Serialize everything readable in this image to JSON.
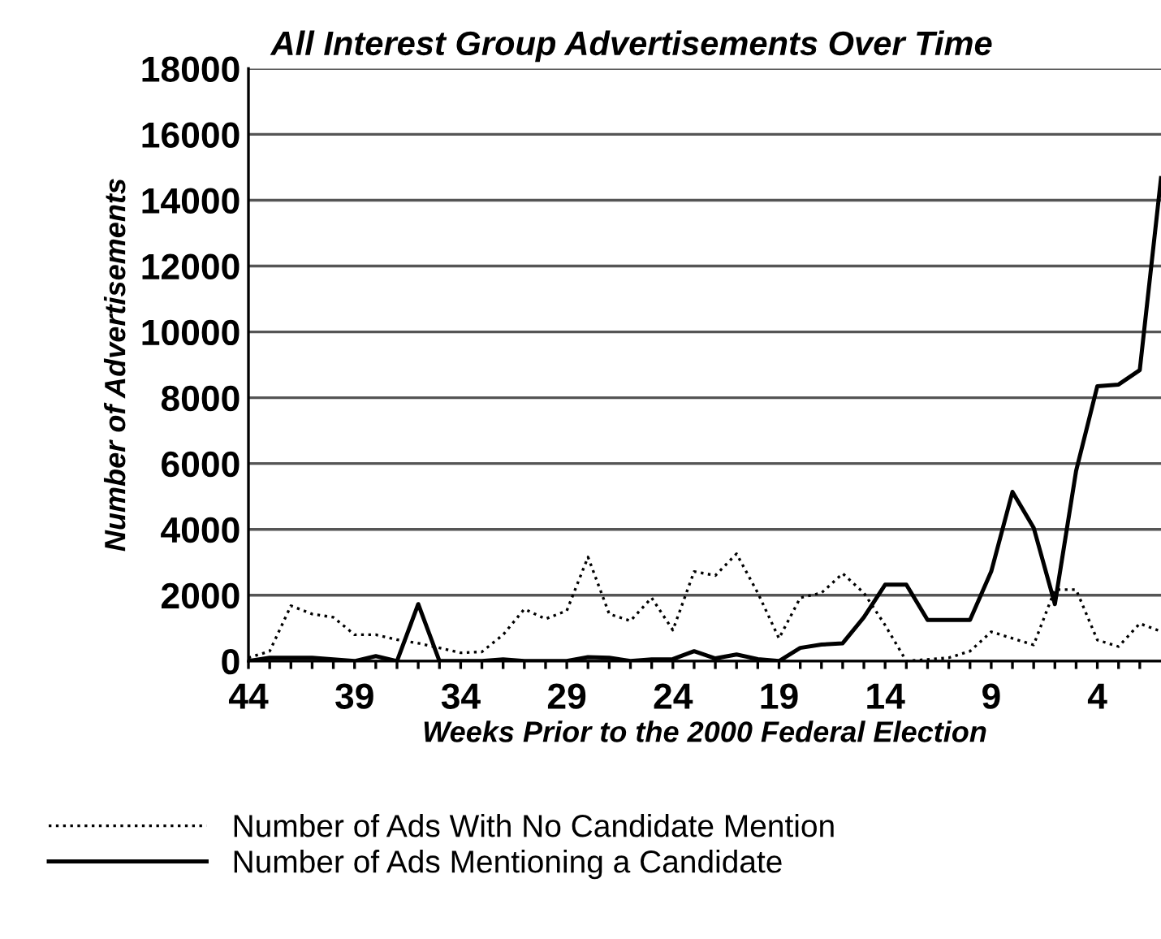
{
  "chart_data": {
    "type": "line",
    "title": "All Interest Group Advertisements Over Time",
    "xlabel": "Weeks Prior to the 2000 Federal Election",
    "ylabel": "Number of Advertisements",
    "x": [
      44,
      43,
      42,
      41,
      40,
      39,
      38,
      37,
      36,
      35,
      34,
      33,
      32,
      31,
      30,
      29,
      28,
      27,
      26,
      25,
      24,
      23,
      22,
      21,
      20,
      19,
      18,
      17,
      16,
      15,
      14,
      13,
      12,
      11,
      10,
      9,
      8,
      7,
      6,
      5,
      4,
      3,
      2,
      1
    ],
    "series": [
      {
        "name": "Number of Ads With No Candidate Mention",
        "color": "#000000",
        "line_style": "dotted",
        "values": [
          100,
          300,
          1680,
          1430,
          1330,
          800,
          800,
          650,
          540,
          400,
          250,
          280,
          800,
          1580,
          1280,
          1530,
          3160,
          1430,
          1220,
          1920,
          940,
          2720,
          2600,
          3260,
          2070,
          690,
          1920,
          2070,
          2660,
          2070,
          1090,
          0,
          50,
          100,
          300,
          890,
          690,
          490,
          2170,
          2170,
          640,
          440,
          1140,
          900
        ]
      },
      {
        "name": "Number of Ads Mentioning a Candidate",
        "color": "#000000",
        "line_style": "solid",
        "values": [
          0,
          100,
          100,
          100,
          50,
          0,
          150,
          0,
          1730,
          0,
          0,
          0,
          50,
          0,
          0,
          0,
          120,
          100,
          0,
          50,
          60,
          300,
          80,
          200,
          60,
          0,
          400,
          500,
          540,
          1330,
          2320,
          2320,
          1250,
          1250,
          1250,
          2720,
          5140,
          4050,
          1730,
          5780,
          8350,
          8400,
          8840,
          14670
        ]
      }
    ],
    "xlim": [
      44,
      1
    ],
    "ylim": [
      0,
      18000
    ],
    "xticks": [
      44,
      {
        "value": 43,
        "label": null
      },
      {
        "value": 42,
        "label": null
      },
      {
        "value": 41,
        "label": null
      },
      {
        "value": 40,
        "label": null
      },
      39,
      {
        "value": 38,
        "label": null
      },
      {
        "value": 37,
        "label": null
      },
      {
        "value": 36,
        "label": null
      },
      {
        "value": 35,
        "label": null
      },
      34,
      {
        "value": 33,
        "label": null
      },
      {
        "value": 32,
        "label": null
      },
      {
        "value": 31,
        "label": null
      },
      {
        "value": 30,
        "label": null
      },
      29,
      {
        "value": 28,
        "label": null
      },
      {
        "value": 27,
        "label": null
      },
      {
        "value": 26,
        "label": null
      },
      {
        "value": 25,
        "label": null
      },
      24,
      {
        "value": 23,
        "label": null
      },
      {
        "value": 22,
        "label": null
      },
      {
        "value": 21,
        "label": null
      },
      {
        "value": 20,
        "label": null
      },
      19,
      {
        "value": 18,
        "label": null
      },
      {
        "value": 17,
        "label": null
      },
      {
        "value": 16,
        "label": null
      },
      {
        "value": 15,
        "label": null
      },
      14,
      {
        "value": 13,
        "label": null
      },
      {
        "value": 12,
        "label": null
      },
      {
        "value": 11,
        "label": null
      },
      {
        "value": 10,
        "label": null
      },
      9,
      {
        "value": 8,
        "label": null
      },
      {
        "value": 7,
        "label": null
      },
      {
        "value": 6,
        "label": null
      },
      {
        "value": 5,
        "label": null
      },
      4,
      {
        "value": 3,
        "label": null
      },
      {
        "value": 2,
        "label": null
      }
    ],
    "yticks": [
      0,
      2000,
      4000,
      6000,
      8000,
      10000,
      12000,
      14000,
      16000,
      18000
    ],
    "grid": "y",
    "legend": "bottom",
    "marker": "none"
  }
}
